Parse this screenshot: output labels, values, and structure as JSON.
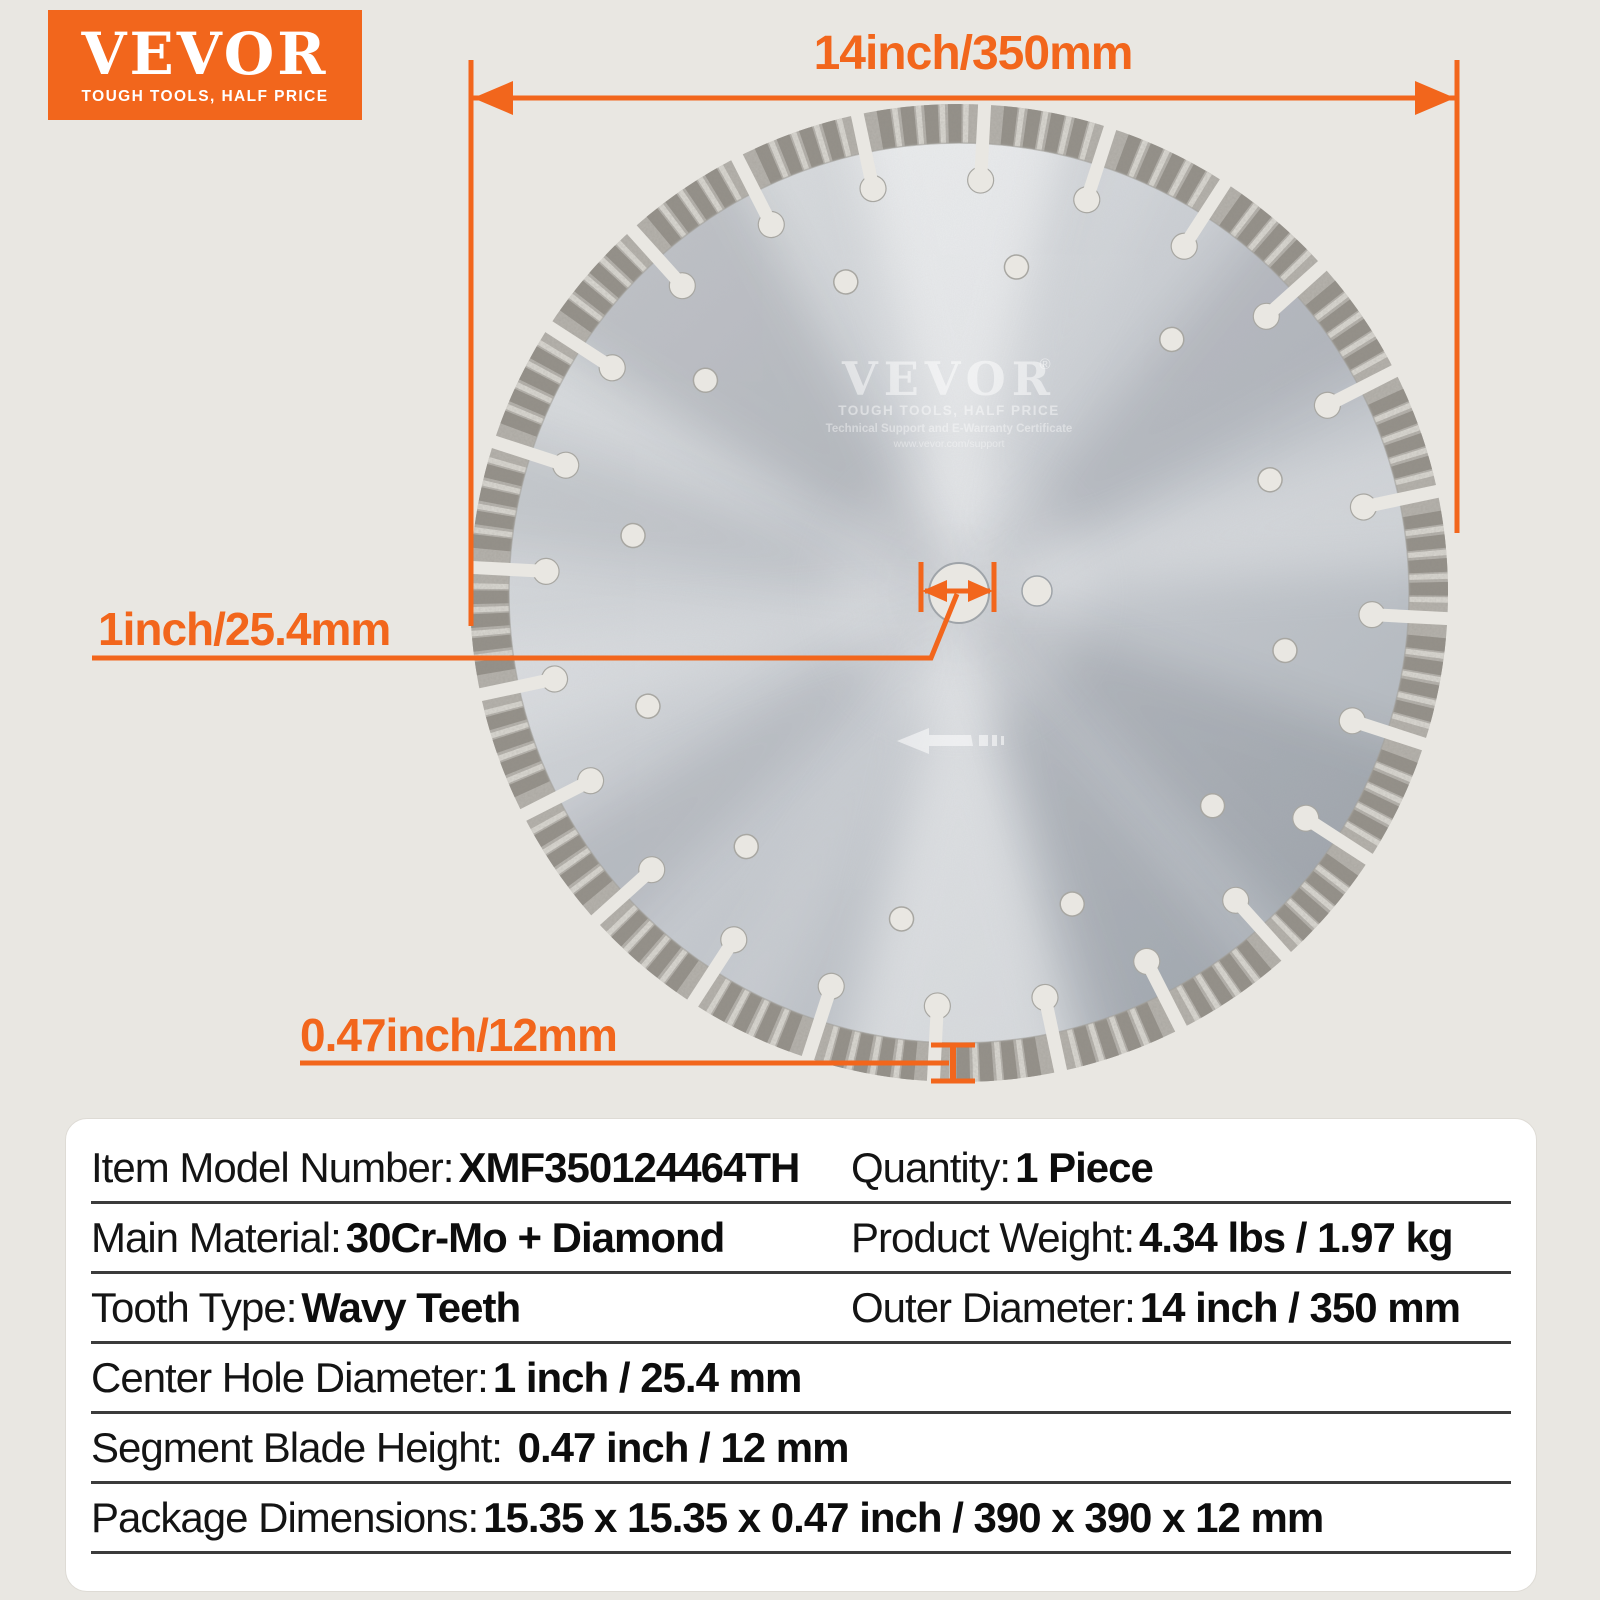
{
  "logo": {
    "brand": "VEVOR",
    "tagline": "TOUGH TOOLS, HALF PRICE"
  },
  "annotations": {
    "outer_diameter": "14inch/350mm",
    "center_hole": "1inch/25.4mm",
    "segment_height": "0.47inch/12mm"
  },
  "blade_etching": {
    "brand": "VEVOR",
    "reg": "®",
    "tagline": "TOUGH TOOLS, HALF PRICE",
    "support_line": "Technical Support and E-Warranty Certificate",
    "website": "www.vevor.com/support"
  },
  "specs": {
    "rows": [
      {
        "cells": [
          {
            "label": "Item Model Number:",
            "value": "XMF350124464TH"
          },
          {
            "label": "Quantity:",
            "value": "1 Piece"
          }
        ]
      },
      {
        "cells": [
          {
            "label": "Main Material:",
            "value": "30Cr-Mo + Diamond"
          },
          {
            "label": "Product Weight:",
            "value": "4.34 lbs / 1.97 kg"
          }
        ]
      },
      {
        "cells": [
          {
            "label": "Tooth Type:",
            "value": "Wavy Teeth"
          },
          {
            "label": "Outer Diameter:",
            "value": "14 inch / 350 mm"
          }
        ]
      },
      {
        "cells": [
          {
            "label": "Center Hole Diameter:",
            "value": "1 inch / 25.4 mm"
          }
        ]
      },
      {
        "cells": [
          {
            "label": "Segment Blade Height:",
            "value": " 0.47 inch / 12 mm"
          }
        ]
      },
      {
        "cells": [
          {
            "label": "Package Dimensions:",
            "value": "15.35 x 15.35 x 0.47 inch / 390 x 390 x 12 mm"
          }
        ]
      }
    ]
  },
  "colors": {
    "accent": "#f2661c",
    "background": "#e9e7e2",
    "card": "#ffffff",
    "divider": "#3b3b3b",
    "text": "#141414",
    "plate_light": "#d9dcdf",
    "plate_mid": "#c6cad0",
    "plate_dark": "#afb5bc",
    "segment": "#b6b3ad",
    "stripe_dark": "#938f88",
    "stripe_light": "#e2dfd9",
    "hole_rim": "#a8a7a2"
  }
}
